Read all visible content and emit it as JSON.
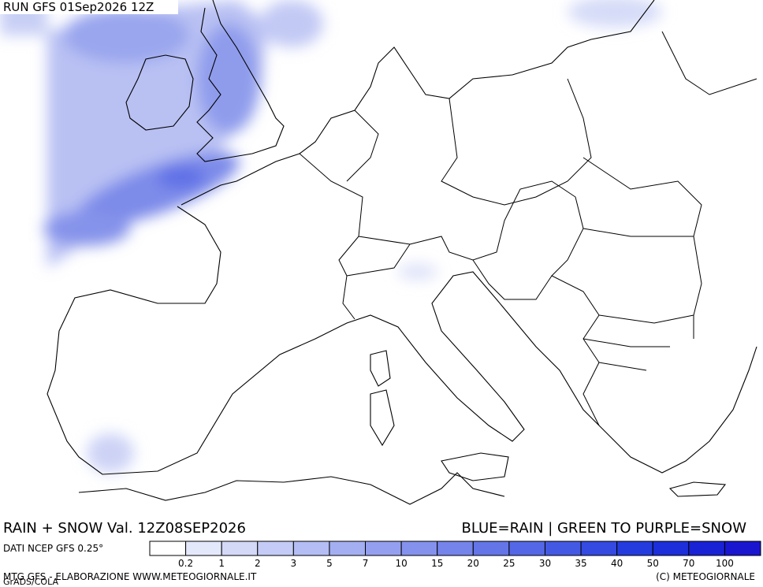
{
  "header": {
    "title": "RUN GFS 01Sep2026 12Z"
  },
  "footer": {
    "field": "RAIN + SNOW Val. 12Z08SEP2026",
    "key": "BLUE=RAIN | GREEN TO PURPLE=SNOW",
    "source": "DATI NCEP GFS 0.25°",
    "credit": "MTG GFS - ELABORAZIONE WWW.METEOGIORNALE.IT",
    "copyright": "(C) METEOGIORNALE",
    "software": "GrADS/COLA"
  },
  "legend": {
    "values": [
      0.2,
      1,
      2,
      3,
      5,
      7,
      10,
      15,
      20,
      25,
      30,
      35,
      40,
      50,
      70,
      100
    ],
    "colors": [
      "#ffffff",
      "#e4e8fb",
      "#d4d9f8",
      "#c4cbf6",
      "#b4bdf4",
      "#a4aff2",
      "#94a0ef",
      "#8492ed",
      "#7484ea",
      "#6475e8",
      "#5467e6",
      "#4459e3",
      "#344ae1",
      "#243cde",
      "#1c2fdb",
      "#1a22d6",
      "#1a16d0"
    ]
  }
}
